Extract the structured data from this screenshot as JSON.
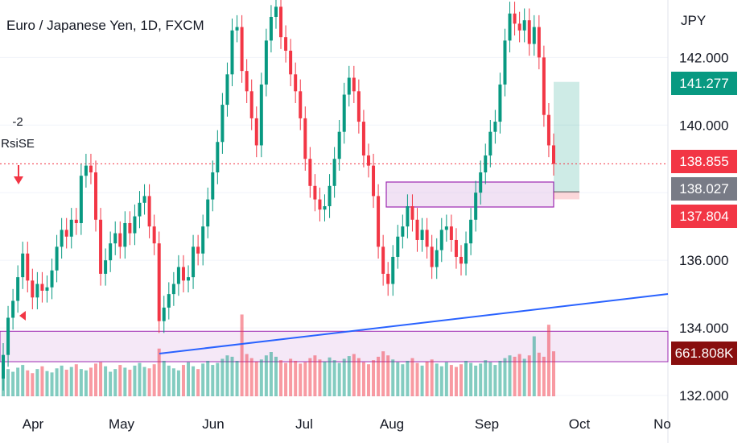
{
  "header": {
    "title": "Euro / Japanese Yen, 1D, FXCM"
  },
  "axis": {
    "unit": "JPY"
  },
  "signal": {
    "value": "-2",
    "name": "RsiSE"
  },
  "badges": {
    "target": {
      "label": "141.277",
      "color": "#089981"
    },
    "last": {
      "label": "138.855",
      "color": "#f23645"
    },
    "entry": {
      "label": "138.027",
      "color": "#787b86"
    },
    "stop": {
      "label": "137.804",
      "color": "#f23645"
    },
    "volume": {
      "label": "661.808K",
      "color": "#880e0e"
    }
  },
  "chart_data": {
    "type": "candlestick",
    "symbol": "EUR/JPY",
    "interval": "1D",
    "source": "FXCM",
    "y_ticks": [
      "132.000",
      "134.000",
      "136.000",
      "138.000",
      "140.000",
      "142.000"
    ],
    "x_ticks": [
      "Apr",
      "May",
      "Jun",
      "Jul",
      "Aug",
      "Sep",
      "Oct",
      "No"
    ],
    "ylim": [
      131.5,
      143.7
    ],
    "current_price": 138.855,
    "closes": [
      133.2,
      134.3,
      134.8,
      135.5,
      136.2,
      135.4,
      134.9,
      135.3,
      135.1,
      135.2,
      135.7,
      136.4,
      136.9,
      136.7,
      137.2,
      137.1,
      138.5,
      138.8,
      138.6,
      137.2,
      135.6,
      136.0,
      136.5,
      136.8,
      136.4,
      137.1,
      136.8,
      137.3,
      137.7,
      137.9,
      137.0,
      136.5,
      134.2,
      134.6,
      135.0,
      135.3,
      135.8,
      135.4,
      135.5,
      136.4,
      136.2,
      137.0,
      137.8,
      138.6,
      139.5,
      140.6,
      141.5,
      142.8,
      142.9,
      141.6,
      141.0,
      140.2,
      139.4,
      141.2,
      142.5,
      143.2,
      143.5,
      142.6,
      142.2,
      141.5,
      141.0,
      140.2,
      139.0,
      138.2,
      137.8,
      137.5,
      137.6,
      138.2,
      139.0,
      139.8,
      140.9,
      141.4,
      141.0,
      140.1,
      139.1,
      138.8,
      137.9,
      136.4,
      135.6,
      135.3,
      136.1,
      136.7,
      137.0,
      137.6,
      137.2,
      136.6,
      136.9,
      136.4,
      135.8,
      136.3,
      136.9,
      137.0,
      136.6,
      136.1,
      135.9,
      136.5,
      137.2,
      138.0,
      138.6,
      139.1,
      139.8,
      140.1,
      141.2,
      142.5,
      143.3,
      143.0,
      142.8,
      143.1,
      142.4,
      142.9,
      142.0,
      140.3,
      139.4,
      138.855
    ],
    "drawings": {
      "entry": 138.027,
      "target": 141.277,
      "stop": 137.804,
      "demand_zone": [
        133.0,
        133.9
      ],
      "supply_zone": [
        137.8,
        138.2
      ]
    },
    "volume": {
      "last": "661.808K",
      "values": [
        30,
        40,
        36,
        42,
        46,
        38,
        34,
        40,
        44,
        37,
        35,
        41,
        45,
        39,
        43,
        47,
        40,
        38,
        42,
        48,
        50,
        44,
        36,
        40,
        46,
        42,
        39,
        45,
        49,
        43,
        41,
        47,
        70,
        52,
        45,
        41,
        38,
        46,
        50,
        44,
        40,
        48,
        52,
        46,
        49,
        55,
        60,
        58,
        52,
        120,
        62,
        56,
        51,
        54,
        60,
        65,
        58,
        53,
        49,
        55,
        52,
        48,
        50,
        56,
        60,
        54,
        51,
        57,
        53,
        49,
        55,
        59,
        62,
        56,
        50,
        47,
        53,
        58,
        66,
        60,
        54,
        50,
        47,
        52,
        56,
        49,
        45,
        51,
        54,
        48,
        44,
        50,
        46,
        43,
        47,
        52,
        49,
        45,
        48,
        53,
        50,
        46,
        52,
        56,
        60,
        58,
        62,
        55,
        60,
        88,
        64,
        58,
        105,
        66
      ]
    }
  }
}
